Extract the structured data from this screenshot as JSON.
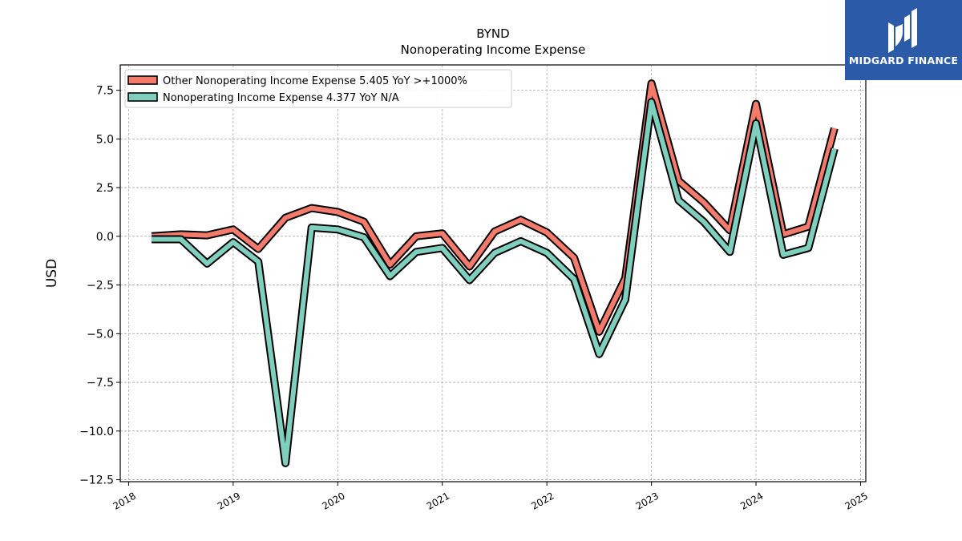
{
  "chart_data": {
    "type": "line",
    "title": "BYND",
    "subtitle": "Nonoperating Income Expense",
    "ylabel": "USD",
    "xlabel": "",
    "xlim": [
      2017.92,
      2025.05
    ],
    "ylim": [
      -12.6,
      8.8
    ],
    "yticks": [
      "7.5",
      "5.0",
      "2.5",
      "0.0",
      "−2.5",
      "−5.0",
      "−7.5",
      "−10.0",
      "−12.5"
    ],
    "ytick_values": [
      7.5,
      5.0,
      2.5,
      0.0,
      -2.5,
      -5.0,
      -7.5,
      -10.0,
      -12.5
    ],
    "xticks": [
      "2018",
      "2019",
      "2020",
      "2021",
      "2022",
      "2023",
      "2024",
      "2025"
    ],
    "xtick_values": [
      2018,
      2019,
      2020,
      2021,
      2022,
      2023,
      2024,
      2025
    ],
    "grid": true,
    "legend_position": "top-left",
    "series": [
      {
        "name": "Other Nonoperating Income Expense  5.405 YoY >+1000%",
        "color": "#f47b6b",
        "x": [
          2018.22,
          2018.5,
          2018.75,
          2019.0,
          2019.24,
          2019.5,
          2019.75,
          2020.0,
          2020.25,
          2020.5,
          2020.75,
          2021.0,
          2021.26,
          2021.5,
          2021.75,
          2022.0,
          2022.26,
          2022.5,
          2022.75,
          2023.0,
          2023.26,
          2023.5,
          2023.75,
          2024.0,
          2024.26,
          2024.5,
          2024.75
        ],
        "y": [
          0.0,
          0.1,
          0.05,
          0.35,
          -0.65,
          0.95,
          1.45,
          1.25,
          0.75,
          -1.45,
          0.0,
          0.15,
          -1.55,
          0.25,
          0.85,
          0.2,
          -1.1,
          -4.9,
          -2.15,
          7.85,
          2.85,
          1.75,
          0.3,
          6.8,
          0.1,
          0.5,
          5.55
        ]
      },
      {
        "name": "Nonoperating Income Expense  4.377 YoY N/A",
        "color": "#7fcfbf",
        "x": [
          2018.22,
          2018.5,
          2018.75,
          2019.0,
          2019.24,
          2019.5,
          2019.75,
          2020.0,
          2020.25,
          2020.5,
          2020.75,
          2021.0,
          2021.26,
          2021.5,
          2021.75,
          2022.0,
          2022.26,
          2022.5,
          2022.75,
          2023.0,
          2023.26,
          2023.5,
          2023.75,
          2024.0,
          2024.26,
          2024.5,
          2024.75
        ],
        "y": [
          -0.15,
          -0.15,
          -1.4,
          -0.3,
          -1.3,
          -11.65,
          0.45,
          0.35,
          -0.05,
          -2.05,
          -0.8,
          -0.6,
          -2.25,
          -0.85,
          -0.25,
          -0.85,
          -2.2,
          -6.05,
          -3.25,
          6.9,
          1.85,
          0.75,
          -0.8,
          5.8,
          -0.95,
          -0.6,
          4.5
        ]
      }
    ]
  },
  "logo": {
    "text": "MIDGARD FINANCE"
  }
}
